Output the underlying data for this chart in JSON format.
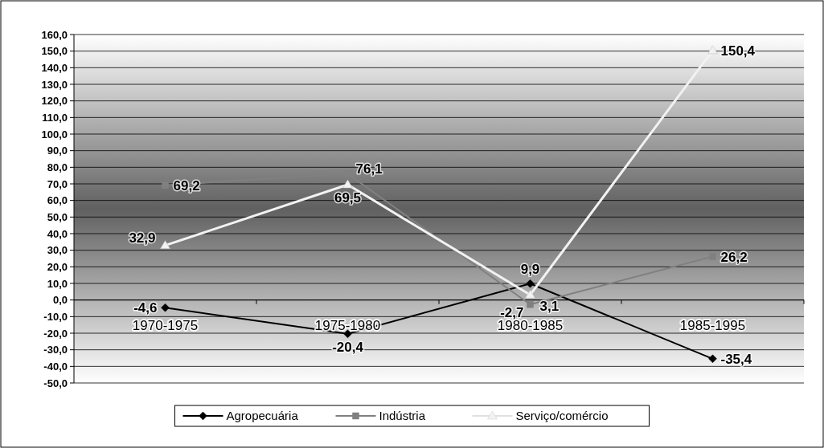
{
  "chart_data": {
    "type": "line",
    "categories": [
      "1970-1975",
      "1975-1980",
      "1980-1985",
      "1985-1995"
    ],
    "series": [
      {
        "name": "Agropecuária",
        "color": "#000000",
        "marker": "diamond",
        "values": [
          -4.6,
          -20.4,
          9.9,
          -35.4
        ],
        "value_labels": [
          "-4,6",
          "-20,4",
          "9,9",
          "-35,4"
        ]
      },
      {
        "name": "Indústria",
        "color": "#808080",
        "marker": "square",
        "values": [
          69.2,
          76.1,
          -2.7,
          26.2
        ],
        "value_labels": [
          "69,2",
          "76,1",
          "-2,7",
          "26,2"
        ]
      },
      {
        "name": "Serviço/comércio",
        "color": "#f2f2f2",
        "marker": "triangle",
        "values": [
          32.9,
          69.5,
          3.1,
          150.4
        ],
        "value_labels": [
          "32,9",
          "69,5",
          "3,1",
          "150,4"
        ]
      }
    ],
    "ylim": [
      -50,
      160
    ],
    "yticks": [
      {
        "value": -50,
        "label": "-50,0"
      },
      {
        "value": -40,
        "label": "-40,0"
      },
      {
        "value": -30,
        "label": "-30,0"
      },
      {
        "value": -20,
        "label": "-20,0"
      },
      {
        "value": -10,
        "label": "-10,0"
      },
      {
        "value": 0,
        "label": "0,0"
      },
      {
        "value": 10,
        "label": "10,0"
      },
      {
        "value": 20,
        "label": "20,0"
      },
      {
        "value": 30,
        "label": "30,0"
      },
      {
        "value": 40,
        "label": "40,0"
      },
      {
        "value": 50,
        "label": "50,0"
      },
      {
        "value": 60,
        "label": "60,0"
      },
      {
        "value": 70,
        "label": "70,0"
      },
      {
        "value": 80,
        "label": "80,0"
      },
      {
        "value": 90,
        "label": "90,0"
      },
      {
        "value": 100,
        "label": "100,0"
      },
      {
        "value": 110,
        "label": "110,0"
      },
      {
        "value": 120,
        "label": "120,0"
      },
      {
        "value": 130,
        "label": "130,0"
      },
      {
        "value": 140,
        "label": "140,0"
      },
      {
        "value": 150,
        "label": "150,0"
      },
      {
        "value": 160,
        "label": "160,0"
      }
    ],
    "grid": "y",
    "legend": "bottom",
    "line_style": "solid"
  }
}
